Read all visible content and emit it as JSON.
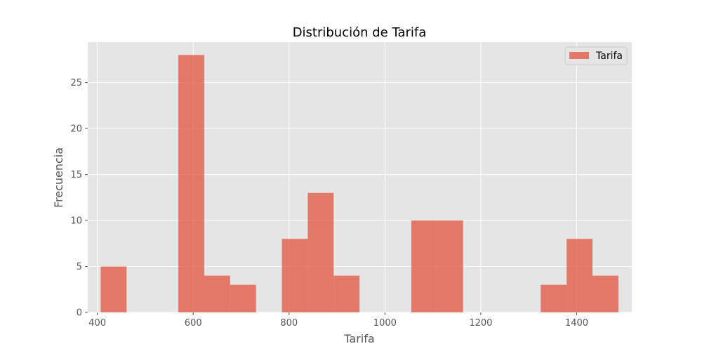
{
  "chart_data": {
    "type": "bar",
    "title": "Distribución de Tarifa",
    "xlabel": "Tarifa",
    "ylabel": "Frecuencia",
    "xlim": [
      380,
      1515
    ],
    "ylim": [
      0,
      29.4
    ],
    "xticks": [
      400,
      600,
      800,
      1000,
      1200,
      1400
    ],
    "yticks": [
      0,
      5,
      10,
      15,
      20,
      25
    ],
    "grid": true,
    "legend_position": "top-right",
    "series": [
      {
        "name": "Tarifa",
        "color": "#E24A33",
        "opacity": 0.7,
        "bins": [
          {
            "x0": 407,
            "x1": 461,
            "count": 5
          },
          {
            "x0": 461,
            "x1": 515,
            "count": 0
          },
          {
            "x0": 515,
            "x1": 569,
            "count": 0
          },
          {
            "x0": 569,
            "x1": 623,
            "count": 28
          },
          {
            "x0": 623,
            "x1": 677,
            "count": 4
          },
          {
            "x0": 677,
            "x1": 731,
            "count": 3
          },
          {
            "x0": 731,
            "x1": 785,
            "count": 0
          },
          {
            "x0": 785,
            "x1": 839,
            "count": 8
          },
          {
            "x0": 839,
            "x1": 893,
            "count": 13
          },
          {
            "x0": 893,
            "x1": 947,
            "count": 4
          },
          {
            "x0": 947,
            "x1": 1001,
            "count": 0
          },
          {
            "x0": 1001,
            "x1": 1055,
            "count": 0
          },
          {
            "x0": 1055,
            "x1": 1109,
            "count": 10
          },
          {
            "x0": 1109,
            "x1": 1163,
            "count": 10
          },
          {
            "x0": 1163,
            "x1": 1217,
            "count": 0
          },
          {
            "x0": 1217,
            "x1": 1271,
            "count": 0
          },
          {
            "x0": 1271,
            "x1": 1325,
            "count": 0
          },
          {
            "x0": 1325,
            "x1": 1379,
            "count": 3
          },
          {
            "x0": 1379,
            "x1": 1433,
            "count": 8
          },
          {
            "x0": 1433,
            "x1": 1487,
            "count": 4
          }
        ]
      }
    ]
  },
  "colors": {
    "background": "#E5E5E5",
    "grid": "#FFFFFF",
    "tick": "#555555"
  }
}
